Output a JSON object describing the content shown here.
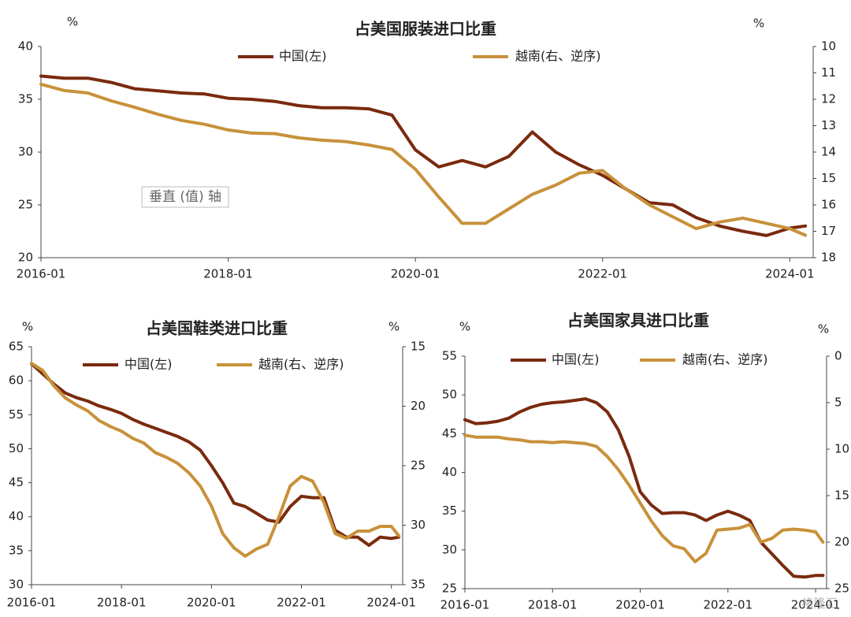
{
  "chart_data": [
    {
      "type": "line",
      "title": "占美国服装进口比重",
      "y_unit": "%",
      "y2_unit": "%",
      "annotation": "垂直 (值) 轴",
      "x": [
        "2016-01",
        "2016-04",
        "2016-07",
        "2016-10",
        "2017-01",
        "2017-04",
        "2017-07",
        "2017-10",
        "2018-01",
        "2018-04",
        "2018-07",
        "2018-10",
        "2019-01",
        "2019-04",
        "2019-07",
        "2019-10",
        "2020-01",
        "2020-04",
        "2020-07",
        "2020-10",
        "2021-01",
        "2021-04",
        "2021-07",
        "2021-10",
        "2022-01",
        "2022-04",
        "2022-07",
        "2022-10",
        "2023-01",
        "2023-04",
        "2023-07",
        "2023-10",
        "2024-01",
        "2024-03"
      ],
      "xlim": [
        "2016-01",
        "2024-04"
      ],
      "xticks": [
        "2016-01",
        "2018-01",
        "2020-01",
        "2022-01",
        "2024-01"
      ],
      "ylim": [
        20,
        40
      ],
      "yticks": [
        20,
        25,
        30,
        35,
        40
      ],
      "y2lim": [
        10,
        18
      ],
      "y2ticks": [
        10,
        11,
        12,
        13,
        14,
        15,
        16,
        17,
        18
      ],
      "y2_inverted": true,
      "legend": "top",
      "series": [
        {
          "name": "中国(左)",
          "color": "#7a2a0e",
          "values": [
            37.2,
            37.0,
            37.0,
            36.6,
            36.0,
            35.8,
            35.6,
            35.5,
            35.1,
            35.0,
            34.8,
            34.4,
            34.2,
            34.2,
            34.1,
            33.5,
            30.2,
            28.6,
            29.2,
            28.6,
            29.6,
            31.9,
            30.0,
            28.8,
            27.8,
            26.5,
            25.2,
            25.0,
            23.8,
            23.0,
            22.5,
            22.1,
            22.8,
            23.0
          ]
        },
        {
          "name": "越南(右、逆序)",
          "color": "#c8913a",
          "axis": "y2",
          "values": [
            11.43,
            11.67,
            11.76,
            12.06,
            12.3,
            12.57,
            12.8,
            12.95,
            13.16,
            13.28,
            13.3,
            13.46,
            13.55,
            13.6,
            13.73,
            13.9,
            14.65,
            15.7,
            16.7,
            16.7,
            16.15,
            15.6,
            15.25,
            14.8,
            14.7,
            15.4,
            16.0,
            16.45,
            16.9,
            16.65,
            16.5,
            16.7,
            16.9,
            17.15
          ]
        }
      ]
    },
    {
      "type": "line",
      "title": "占美国鞋类进口比重",
      "y_unit": "%",
      "y2_unit": "%",
      "x": [
        "2016-01",
        "2016-04",
        "2016-07",
        "2016-10",
        "2017-01",
        "2017-04",
        "2017-07",
        "2017-10",
        "2018-01",
        "2018-04",
        "2018-07",
        "2018-10",
        "2019-01",
        "2019-04",
        "2019-07",
        "2019-10",
        "2020-01",
        "2020-04",
        "2020-07",
        "2020-10",
        "2021-01",
        "2021-04",
        "2021-07",
        "2021-10",
        "2022-01",
        "2022-04",
        "2022-07",
        "2022-10",
        "2023-01",
        "2023-04",
        "2023-07",
        "2023-10",
        "2024-01",
        "2024-03"
      ],
      "xlim": [
        "2016-01",
        "2024-04"
      ],
      "xticks": [
        "2016-01",
        "2018-01",
        "2020-01",
        "2022-01",
        "2024-01"
      ],
      "ylim": [
        30,
        65
      ],
      "yticks": [
        30,
        35,
        40,
        45,
        50,
        55,
        60,
        65
      ],
      "y2lim": [
        15,
        35
      ],
      "y2ticks": [
        15,
        20,
        25,
        30,
        35
      ],
      "y2_inverted": true,
      "legend": "top",
      "series": [
        {
          "name": "中国(左)",
          "color": "#7a2a0e",
          "values": [
            62.5,
            61.0,
            59.5,
            58.2,
            57.5,
            57.0,
            56.3,
            55.8,
            55.2,
            54.3,
            53.6,
            53.0,
            52.4,
            51.8,
            51.0,
            49.8,
            47.5,
            45.0,
            42.0,
            41.5,
            40.5,
            39.5,
            39.2,
            41.5,
            43.0,
            42.8,
            42.8,
            38.0,
            37.0,
            37.0,
            35.8,
            37.0,
            36.8,
            37.0
          ]
        },
        {
          "name": "越南(右、逆序)",
          "color": "#c8913a",
          "axis": "y2",
          "values": [
            16.4,
            17.0,
            18.3,
            19.3,
            19.9,
            20.4,
            21.2,
            21.7,
            22.1,
            22.7,
            23.1,
            23.9,
            24.3,
            24.8,
            25.6,
            26.7,
            28.4,
            30.7,
            31.9,
            32.6,
            32.0,
            31.6,
            29.3,
            26.7,
            25.9,
            26.3,
            28.1,
            30.7,
            31.1,
            30.5,
            30.5,
            30.1,
            30.1,
            30.9
          ]
        }
      ]
    },
    {
      "type": "line",
      "title": "占美国家具进口比重",
      "y_unit": "%",
      "y2_unit": "%",
      "watermark": "格隆汇",
      "x": [
        "2016-01",
        "2016-04",
        "2016-07",
        "2016-10",
        "2017-01",
        "2017-04",
        "2017-07",
        "2017-10",
        "2018-01",
        "2018-04",
        "2018-07",
        "2018-10",
        "2019-01",
        "2019-04",
        "2019-07",
        "2019-10",
        "2020-01",
        "2020-04",
        "2020-07",
        "2020-10",
        "2021-01",
        "2021-04",
        "2021-07",
        "2021-10",
        "2022-01",
        "2022-04",
        "2022-07",
        "2022-10",
        "2023-01",
        "2023-04",
        "2023-07",
        "2023-10",
        "2024-01",
        "2024-03"
      ],
      "xlim": [
        "2016-01",
        "2024-04"
      ],
      "xticks": [
        "2016-01",
        "2018-01",
        "2020-01",
        "2022-01",
        "2024-01"
      ],
      "ylim": [
        25,
        55
      ],
      "yticks": [
        25,
        30,
        35,
        40,
        45,
        50,
        55
      ],
      "y2lim": [
        0,
        25
      ],
      "y2ticks": [
        0,
        5,
        10,
        15,
        20,
        25
      ],
      "y2_inverted": true,
      "legend": "top",
      "series": [
        {
          "name": "中国(左)",
          "color": "#7a2a0e",
          "values": [
            46.8,
            46.3,
            46.4,
            46.6,
            47.0,
            47.8,
            48.4,
            48.8,
            49.0,
            49.1,
            49.3,
            49.5,
            49.0,
            47.8,
            45.5,
            42.0,
            37.5,
            35.8,
            34.7,
            34.8,
            34.8,
            34.5,
            33.8,
            34.5,
            35.0,
            34.5,
            33.8,
            31.0,
            29.5,
            28.0,
            26.6,
            26.5,
            26.7,
            26.7
          ]
        },
        {
          "name": "越南(右、逆序)",
          "color": "#c8913a",
          "axis": "y2",
          "values": [
            8.5,
            8.7,
            8.7,
            8.7,
            8.9,
            9.0,
            9.2,
            9.2,
            9.3,
            9.2,
            9.3,
            9.4,
            9.7,
            10.8,
            12.2,
            13.9,
            15.8,
            17.7,
            19.3,
            20.4,
            20.7,
            22.1,
            21.2,
            18.7,
            18.6,
            18.5,
            18.1,
            20.0,
            19.6,
            18.7,
            18.6,
            18.7,
            18.9,
            20.0
          ]
        }
      ]
    }
  ]
}
